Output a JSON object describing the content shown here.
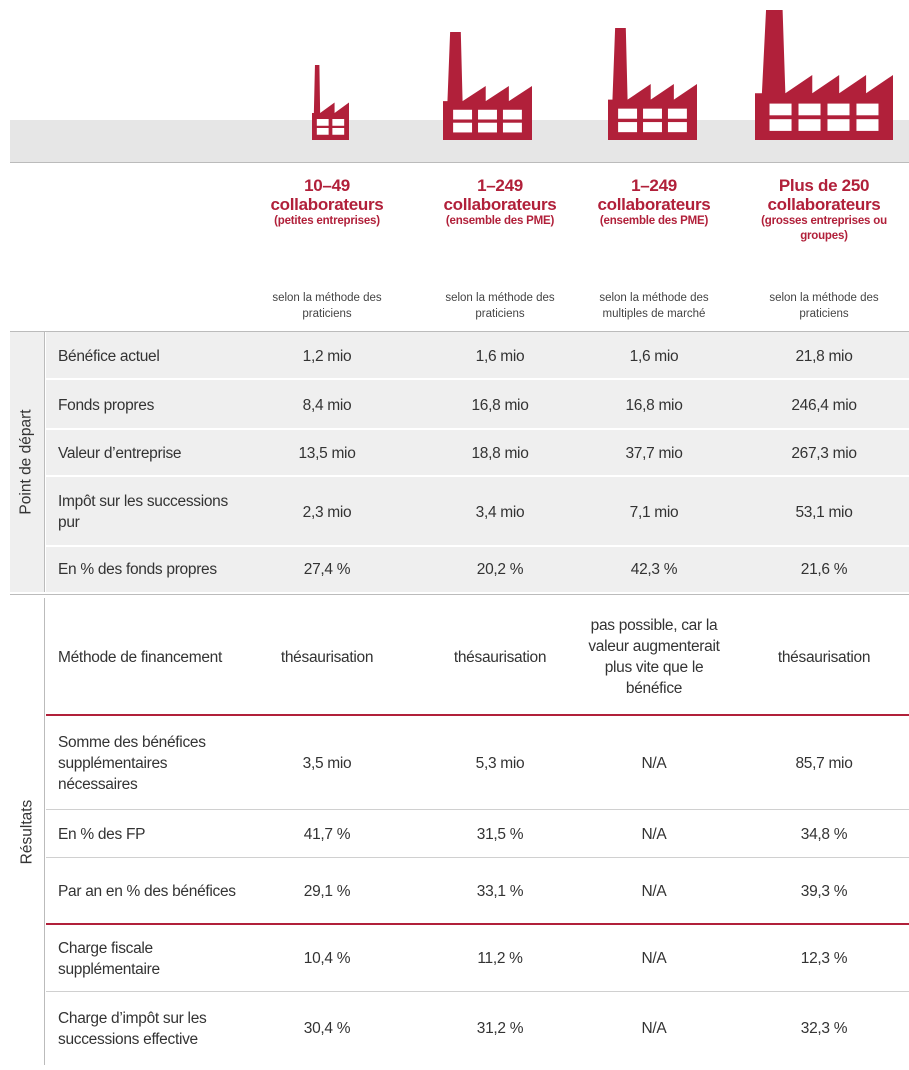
{
  "columns": [
    {
      "title": "10–49 collaborateurs",
      "subtitle": "(petites entreprises)",
      "method": "selon la méthode des praticiens"
    },
    {
      "title": "1–249 collaborateurs",
      "subtitle": "(ensemble des PME)",
      "method": "selon la méthode des praticiens"
    },
    {
      "title": "1–249 collaborateurs",
      "subtitle": "(ensemble des PME)",
      "method": "selon la méthode des multiples de marché"
    },
    {
      "title": "Plus de 250 collaborateurs",
      "subtitle": "(grosses entreprises ou groupes)",
      "method": "selon la méthode des praticiens"
    }
  ],
  "groups": [
    {
      "label": "Point de départ",
      "rows": [
        {
          "label": "Bénéfice actuel",
          "cells": [
            "1,2 mio",
            "1,6 mio",
            "1,6 mio",
            "21,8 mio"
          ]
        },
        {
          "label": "Fonds propres",
          "cells": [
            "8,4 mio",
            "16,8 mio",
            "16,8 mio",
            "246,4 mio"
          ]
        },
        {
          "label": "Valeur d’entreprise",
          "cells": [
            "13,5 mio",
            "18,8 mio",
            "37,7 mio",
            "267,3 mio"
          ]
        },
        {
          "label": "Impôt sur les successions pur",
          "cells": [
            "2,3 mio",
            "3,4 mio",
            "7,1 mio",
            "53,1 mio"
          ]
        },
        {
          "label": "En % des fonds propres",
          "cells": [
            "27,4 %",
            "20,2 %",
            "42,3 %",
            "21,6 %"
          ]
        }
      ]
    },
    {
      "label": "Résultats",
      "rows": [
        {
          "label": "Méthode de financement",
          "cells": [
            "thésaurisation",
            "thésaurisation",
            "pas possible, car la valeur augmenterait plus vite que le bénéfice",
            "thésaurisation"
          ]
        },
        {
          "label": "Somme des bénéfices supplémentaires nécessaires",
          "cells": [
            "3,5 mio",
            "5,3 mio",
            "N/A",
            "85,7 mio"
          ]
        },
        {
          "label": "En % des FP",
          "cells": [
            "41,7 %",
            "31,5 %",
            "N/A",
            "34,8 %"
          ]
        },
        {
          "label": "Par an en % des bénéfices",
          "cells": [
            "29,1 %",
            "33,1 %",
            "N/A",
            "39,3 %"
          ]
        },
        {
          "label": "Charge fiscale supplémentaire",
          "cells": [
            "10,4 %",
            "11,2 %",
            "N/A",
            "12,3 %"
          ]
        },
        {
          "label": "Charge d’impôt sur les successions effective",
          "cells": [
            "30,4 %",
            "31,2 %",
            "N/A",
            "32,3 %"
          ]
        }
      ]
    }
  ]
}
